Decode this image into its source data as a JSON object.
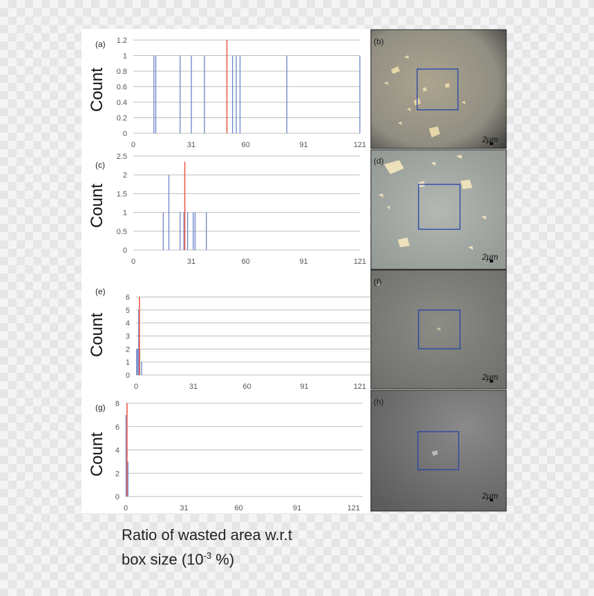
{
  "xlabel": {
    "line1": "Ratio of wasted area w.r.t",
    "line2_prefix": "box size (10",
    "line2_sup": "-3",
    "line2_suffix": " %)"
  },
  "colors": {
    "bars": "#6b84c8",
    "mean": "#ee5a4a",
    "grid": "#bdbdbd",
    "box": "#2244aa"
  },
  "chart_data": [
    {
      "type": "bar",
      "panel": "(a)",
      "ylabel": "Count",
      "xticks": [
        0,
        31,
        60,
        91,
        121
      ],
      "yticks": [
        "0",
        "0.2",
        "0.4",
        "0.6",
        "0.8",
        "1",
        "1.2"
      ],
      "xlim": [
        0,
        121
      ],
      "ylim": [
        0,
        1.2
      ],
      "bars": [
        {
          "x": 11,
          "y": 1
        },
        {
          "x": 12,
          "y": 1
        },
        {
          "x": 25,
          "y": 1
        },
        {
          "x": 31,
          "y": 1
        },
        {
          "x": 38,
          "y": 1
        },
        {
          "x": 53,
          "y": 1
        },
        {
          "x": 55,
          "y": 1
        },
        {
          "x": 57,
          "y": 1
        },
        {
          "x": 82,
          "y": 1
        },
        {
          "x": 121,
          "y": 1
        }
      ],
      "mean": {
        "x": 50,
        "y": 1.2
      }
    },
    {
      "type": "bar",
      "panel": "(c)",
      "ylabel": "Count",
      "xticks": [
        0,
        31,
        60,
        91,
        121
      ],
      "yticks": [
        "0",
        "0.5",
        "1",
        "1.5",
        "2",
        "2.5"
      ],
      "xlim": [
        0,
        121
      ],
      "ylim": [
        0,
        2.5
      ],
      "bars": [
        {
          "x": 16,
          "y": 1
        },
        {
          "x": 19,
          "y": 2
        },
        {
          "x": 25,
          "y": 1
        },
        {
          "x": 27,
          "y": 1
        },
        {
          "x": 29,
          "y": 1
        },
        {
          "x": 32,
          "y": 1
        },
        {
          "x": 33,
          "y": 1
        },
        {
          "x": 39,
          "y": 1
        }
      ],
      "mean": {
        "x": 27.5,
        "y": 2.35
      }
    },
    {
      "type": "bar",
      "panel": "(e)",
      "ylabel": "Count",
      "xticks": [
        0,
        31,
        60,
        91,
        121
      ],
      "yticks": [
        "0",
        "1",
        "2",
        "3",
        "4",
        "5",
        "6"
      ],
      "xlim": [
        0,
        121
      ],
      "ylim": [
        0,
        6
      ],
      "bars": [
        {
          "x": 0.3,
          "y": 2
        },
        {
          "x": 0.8,
          "y": 2
        },
        {
          "x": 1.4,
          "y": 5
        },
        {
          "x": 2.0,
          "y": 2
        },
        {
          "x": 3.0,
          "y": 1
        }
      ],
      "mean": {
        "x": 1.8,
        "y": 6
      }
    },
    {
      "type": "bar",
      "panel": "(g)",
      "ylabel": "Count",
      "xticks": [
        0,
        31,
        60,
        91,
        121
      ],
      "yticks": [
        "0",
        "2",
        "4",
        "6",
        "8"
      ],
      "xlim": [
        0,
        121
      ],
      "ylim": [
        0,
        8
      ],
      "bars": [
        {
          "x": 0.2,
          "y": 7
        },
        {
          "x": 1.2,
          "y": 3
        }
      ],
      "mean": {
        "x": 0.7,
        "y": 8
      }
    }
  ],
  "micrographs": [
    {
      "label": "(b)",
      "scale": "2μm"
    },
    {
      "label": "(d)",
      "scale": "2μm"
    },
    {
      "label": "(f)",
      "scale": "2μm"
    },
    {
      "label": "(h)",
      "scale": "2μm"
    }
  ]
}
